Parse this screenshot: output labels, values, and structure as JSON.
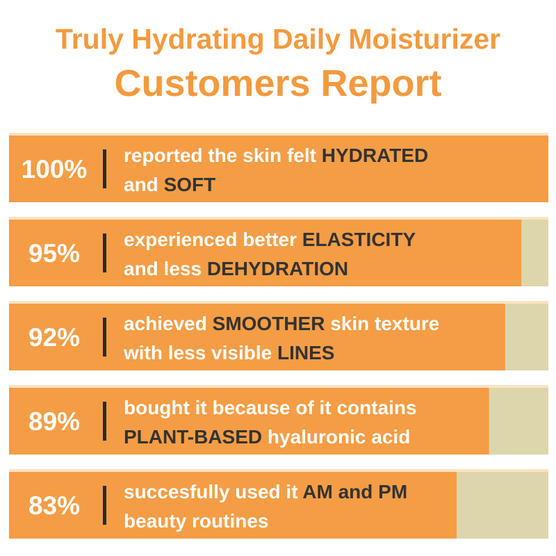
{
  "chart_data": {
    "type": "bar",
    "orientation": "horizontal",
    "title": "Truly Hydrating Daily Moisturizer",
    "subtitle": "Customers Report",
    "xlim": [
      0,
      100
    ],
    "color": "#f49d45",
    "track_color": "#ded6ab",
    "highlight_color": "#333333",
    "values": [
      100,
      95,
      92,
      89,
      83
    ],
    "value_labels": [
      "100%",
      "95%",
      "92%",
      "89%",
      "83%"
    ],
    "descriptions": [
      [
        [
          {
            "text": "reported the skin felt ",
            "highlight": false
          },
          {
            "text": "HYDRATED",
            "highlight": true
          }
        ],
        [
          {
            "text": "and ",
            "highlight": false
          },
          {
            "text": "SOFT",
            "highlight": true
          }
        ]
      ],
      [
        [
          {
            "text": "experienced better ",
            "highlight": false
          },
          {
            "text": "ELASTICITY",
            "highlight": true
          }
        ],
        [
          {
            "text": "and less ",
            "highlight": false
          },
          {
            "text": "DEHYDRATION",
            "highlight": true
          }
        ]
      ],
      [
        [
          {
            "text": "achieved ",
            "highlight": false
          },
          {
            "text": "SMOOTHER",
            "highlight": true
          },
          {
            "text": " skin texture",
            "highlight": false
          }
        ],
        [
          {
            "text": "with less visible ",
            "highlight": false
          },
          {
            "text": "LINES",
            "highlight": true
          }
        ]
      ],
      [
        [
          {
            "text": "bought it because of it contains",
            "highlight": false
          }
        ],
        [
          {
            "text": "PLANT-BASED",
            "highlight": true
          },
          {
            "text": " hyaluronic acid",
            "highlight": false
          }
        ]
      ],
      [
        [
          {
            "text": "succesfully used it ",
            "highlight": false
          },
          {
            "text": "AM and PM",
            "highlight": true
          }
        ],
        [
          {
            "text": "beauty routines",
            "highlight": false
          }
        ]
      ]
    ]
  }
}
